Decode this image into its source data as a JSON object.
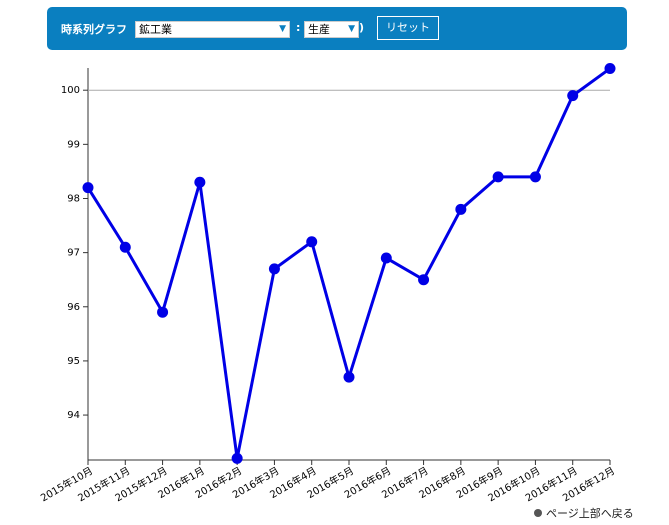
{
  "header": {
    "label": "時系列グラフ",
    "open_paren": "(",
    "select_industry": "鉱工業",
    "separator": ":",
    "select_measure": "生産",
    "close_paren": ")",
    "reset_button": "リセット"
  },
  "chart_data": {
    "type": "line",
    "categories": [
      "2015年10月",
      "2015年11月",
      "2015年12月",
      "2016年1月",
      "2016年2月",
      "2016年3月",
      "2016年4月",
      "2016年5月",
      "2016年6月",
      "2016年7月",
      "2016年8月",
      "2016年9月",
      "2016年10月",
      "2016年11月",
      "2016年12月"
    ],
    "series": [
      {
        "name": "生産",
        "color": "#0000e6",
        "values": [
          98.2,
          97.1,
          95.9,
          98.3,
          93.2,
          96.7,
          97.2,
          94.7,
          96.9,
          96.5,
          97.8,
          98.4,
          98.4,
          99.9,
          100.4
        ]
      }
    ],
    "ylim": [
      93.17,
      100.41
    ],
    "yticks": [
      94,
      95,
      96,
      97,
      98,
      99,
      100
    ],
    "reference_line": 100
  },
  "footer": {
    "back_to_top": "ページ上部へ戻る"
  }
}
